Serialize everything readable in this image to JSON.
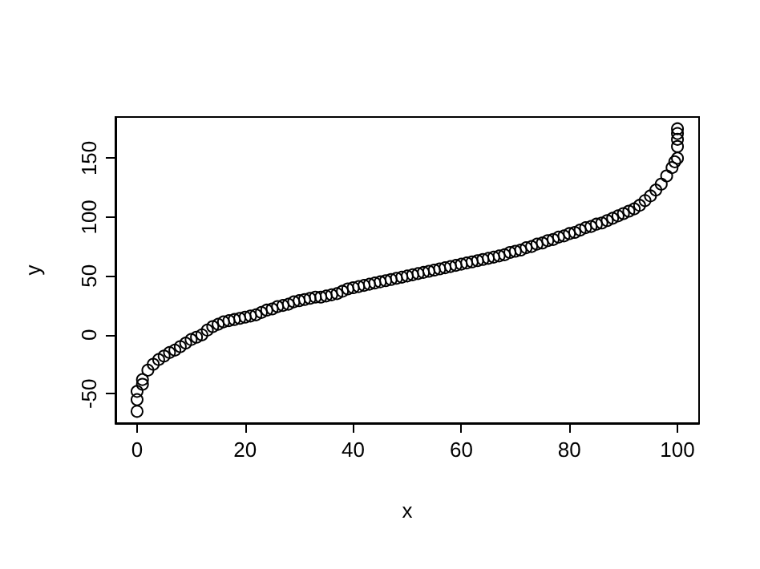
{
  "chart_data": {
    "type": "scatter",
    "xlabel": "x",
    "ylabel": "y",
    "marker": "circle",
    "grid": false,
    "xlim": [
      -4,
      104
    ],
    "ylim": [
      -75,
      185
    ],
    "xticks": [
      0,
      20,
      40,
      60,
      80,
      100
    ],
    "yticks": [
      -50,
      0,
      50,
      100,
      150
    ],
    "series": [
      {
        "color": "#000000",
        "x": [
          0,
          0,
          0,
          1,
          1,
          2,
          3,
          4,
          5,
          6,
          7,
          8,
          9,
          10,
          11,
          12,
          13,
          14,
          15,
          16,
          17,
          18,
          19,
          20,
          21,
          22,
          23,
          24,
          25,
          26,
          27,
          28,
          29,
          30,
          31,
          32,
          33,
          34,
          35,
          36,
          37,
          38,
          39,
          40,
          41,
          42,
          43,
          44,
          45,
          46,
          47,
          48,
          49,
          50,
          51,
          52,
          53,
          54,
          55,
          56,
          57,
          58,
          59,
          60,
          61,
          62,
          63,
          64,
          65,
          66,
          67,
          68,
          69,
          70,
          71,
          72,
          73,
          74,
          75,
          76,
          77,
          78,
          79,
          80,
          81,
          82,
          83,
          84,
          85,
          86,
          87,
          88,
          89,
          90,
          91,
          92,
          93,
          94,
          95,
          96,
          97,
          98,
          99,
          99.5,
          100,
          100,
          100,
          100,
          100
        ],
        "values": [
          -65,
          -55,
          -48,
          -42,
          -38,
          -30,
          -25,
          -21,
          -18,
          -15,
          -13,
          -10,
          -7,
          -4,
          -2,
          0,
          4,
          7,
          9,
          11,
          12,
          13,
          14,
          15,
          16,
          17,
          19,
          21,
          22,
          24,
          25,
          26,
          28,
          29,
          30,
          31,
          32,
          32,
          33,
          34,
          35,
          37,
          39,
          40,
          41,
          42,
          43,
          44,
          45,
          46,
          47,
          48,
          49,
          50,
          51,
          52,
          53,
          54,
          55,
          56,
          57,
          58,
          59,
          60,
          61,
          62,
          63,
          64,
          65,
          66,
          67,
          68,
          70,
          71,
          72,
          74,
          75,
          77,
          78,
          80,
          81,
          83,
          84,
          86,
          87,
          89,
          91,
          92,
          94,
          95,
          97,
          99,
          101,
          103,
          105,
          107,
          110,
          114,
          118,
          123,
          128,
          135,
          142,
          147,
          150,
          160,
          166,
          171,
          175
        ]
      }
    ]
  }
}
